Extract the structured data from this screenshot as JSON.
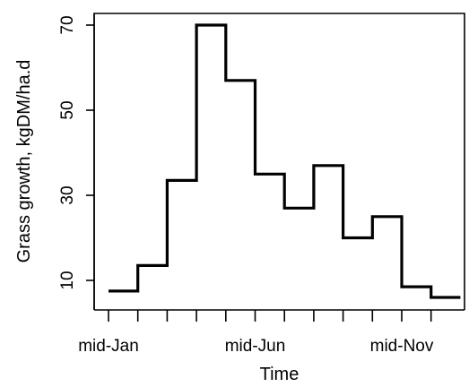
{
  "chart_data": {
    "type": "line",
    "style": "step",
    "title": "",
    "xlabel": "Time",
    "ylabel": "Grass growth, kgDM/ha.d",
    "x_months": [
      1,
      2,
      3,
      4,
      5,
      6,
      7,
      8,
      9,
      10,
      11,
      12
    ],
    "x_tick_labels": [
      {
        "month": 1,
        "label": "mid-Jan"
      },
      {
        "month": 6,
        "label": "mid-Jun"
      },
      {
        "month": 11,
        "label": "mid-Nov"
      }
    ],
    "y_ticks": [
      10,
      30,
      50,
      70
    ],
    "ylim": [
      5,
      72
    ],
    "grid": false,
    "series": [
      {
        "values": [
          7.5,
          13.5,
          33.5,
          70,
          57,
          35,
          27,
          37,
          20,
          25,
          8.5,
          6
        ]
      }
    ]
  }
}
